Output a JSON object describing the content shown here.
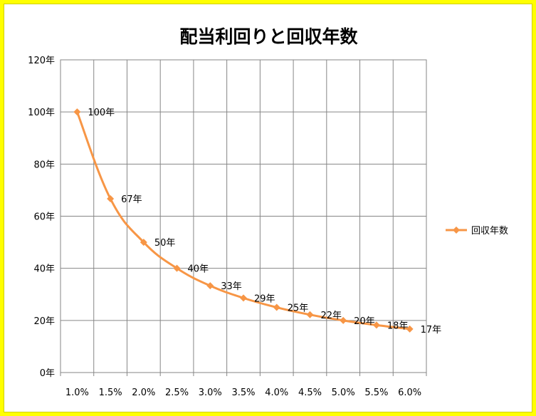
{
  "chart_data": {
    "type": "line",
    "title": "配当利回りと回収年数",
    "xlabel": "",
    "ylabel": "",
    "categories": [
      "1.0%",
      "1.5%",
      "2.0%",
      "2.5%",
      "3.0%",
      "3.5%",
      "4.0%",
      "4.5%",
      "5.0%",
      "5.5%",
      "6.0%"
    ],
    "series": [
      {
        "name": "回収年数",
        "values": [
          100,
          66.7,
          50,
          40,
          33.3,
          28.6,
          25,
          22.2,
          20,
          18.2,
          16.7
        ],
        "data_labels": [
          "100年",
          "67年",
          "50年",
          "40年",
          "33年",
          "29年",
          "25年",
          "22年",
          "20年",
          "18年",
          "17年"
        ],
        "color": "#f79646",
        "marker": "diamond"
      }
    ],
    "ylim": [
      0,
      120
    ],
    "y_tick_labels": [
      "0年",
      "20年",
      "40年",
      "60年",
      "80年",
      "100年",
      "120年"
    ],
    "grid": true,
    "legend": "right"
  }
}
